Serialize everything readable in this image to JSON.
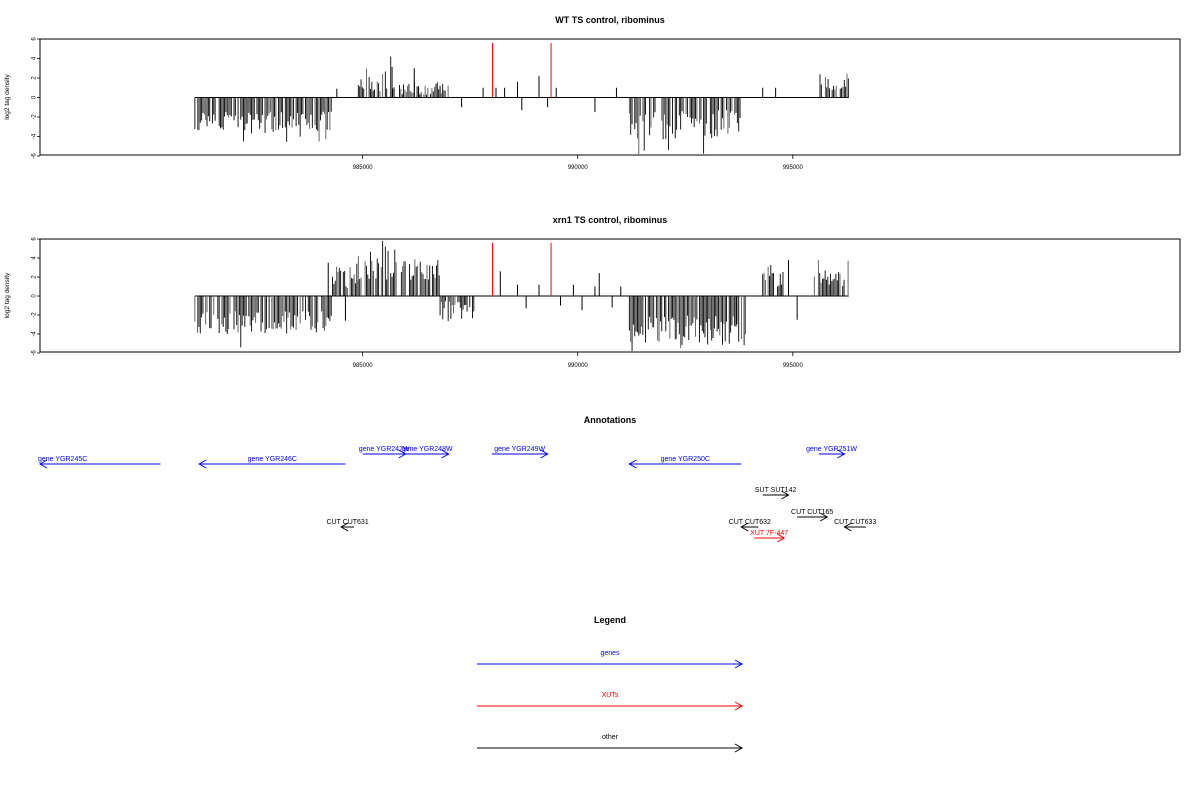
{
  "colors": {
    "gene": "#0000ff",
    "xut": "#ff0000",
    "other": "#000000",
    "ref": "#ff0000",
    "bar": "#000000"
  },
  "chart_data": [
    {
      "type": "bar",
      "title": "WT TS control, ribominus",
      "ylabel": "log2 tag density",
      "ylim": [
        -6,
        6
      ],
      "yticks": [
        "6",
        "4",
        "2",
        "0",
        "-2",
        "-4",
        "-6"
      ],
      "xlim": [
        977500,
        1004000
      ],
      "xticks": [
        985000,
        990000,
        995000
      ],
      "xtick_labels": [
        "985000",
        "990000",
        "995000"
      ],
      "data_range": [
        981100,
        996300
      ],
      "reference_lines": [
        988020,
        989380
      ],
      "segments": [
        {
          "from": 981100,
          "to": 984300,
          "dir": -1,
          "mean": 2.4,
          "amp": 1.0
        },
        {
          "from": 984300,
          "to": 984900,
          "dir": 0
        },
        {
          "from": 984900,
          "to": 985700,
          "dir": 1,
          "mean": 1.9,
          "amp": 1.6
        },
        {
          "from": 985700,
          "to": 987000,
          "dir": 1,
          "mean": 0.8,
          "amp": 0.6
        },
        {
          "from": 987000,
          "to": 990500,
          "dir": 0
        },
        {
          "from": 990500,
          "to": 991200,
          "dir": 0
        },
        {
          "from": 991200,
          "to": 993800,
          "dir": -1,
          "mean": 2.8,
          "amp": 1.5
        },
        {
          "from": 993800,
          "to": 995600,
          "dir": 0
        },
        {
          "from": 995600,
          "to": 996300,
          "dir": 1,
          "mean": 1.5,
          "amp": 1.0
        }
      ],
      "sparse_bars": [
        [
          984400,
          0.9
        ],
        [
          986200,
          3.0
        ],
        [
          986300,
          1.0
        ],
        [
          986800,
          1.2
        ],
        [
          987300,
          -1.0
        ],
        [
          987800,
          1.0
        ],
        [
          988100,
          1.0
        ],
        [
          988300,
          1.0
        ],
        [
          988600,
          1.6
        ],
        [
          988700,
          -1.3
        ],
        [
          989100,
          2.2
        ],
        [
          989300,
          -1.0
        ],
        [
          989500,
          1.0
        ],
        [
          990400,
          -1.5
        ],
        [
          990900,
          1.0
        ],
        [
          994300,
          1.0
        ],
        [
          994600,
          1.0
        ]
      ]
    },
    {
      "type": "bar",
      "title": "xrn1 TS control, ribominus",
      "ylabel": "log2 tag density",
      "ylim": [
        -6,
        6
      ],
      "yticks": [
        "6",
        "4",
        "2",
        "0",
        "-2",
        "-4",
        "-6"
      ],
      "xlim": [
        977500,
        1004000
      ],
      "xticks": [
        985000,
        990000,
        995000
      ],
      "xtick_labels": [
        "985000",
        "990000",
        "995000"
      ],
      "data_range": [
        981100,
        996300
      ],
      "reference_lines": [
        988020,
        989380
      ],
      "segments": [
        {
          "from": 981100,
          "to": 984300,
          "dir": -1,
          "mean": 2.8,
          "amp": 1.2
        },
        {
          "from": 984300,
          "to": 984900,
          "dir": 1,
          "mean": 2.0,
          "amp": 1.2
        },
        {
          "from": 984900,
          "to": 985800,
          "dir": 1,
          "mean": 3.4,
          "amp": 1.8
        },
        {
          "from": 985900,
          "to": 986800,
          "dir": 1,
          "mean": 2.8,
          "amp": 1.2
        },
        {
          "from": 986800,
          "to": 987600,
          "dir": -1,
          "mean": 1.5,
          "amp": 1.0
        },
        {
          "from": 987600,
          "to": 991200,
          "dir": 0
        },
        {
          "from": 991200,
          "to": 993900,
          "dir": -1,
          "mean": 3.6,
          "amp": 1.6
        },
        {
          "from": 994300,
          "to": 994800,
          "dir": 1,
          "mean": 2.0,
          "amp": 1.2
        },
        {
          "from": 995500,
          "to": 996300,
          "dir": 1,
          "mean": 1.8,
          "amp": 1.0
        }
      ],
      "sparse_bars": [
        [
          984200,
          3.5
        ],
        [
          984600,
          -2.6
        ],
        [
          988200,
          2.6
        ],
        [
          988600,
          1.2
        ],
        [
          988800,
          -1.3
        ],
        [
          989100,
          1.2
        ],
        [
          989600,
          -1.0
        ],
        [
          989900,
          1.2
        ],
        [
          990100,
          -1.5
        ],
        [
          990400,
          1.0
        ],
        [
          990500,
          2.4
        ],
        [
          990800,
          -1.2
        ],
        [
          991000,
          1.0
        ],
        [
          993700,
          -3.0
        ],
        [
          994900,
          3.8
        ],
        [
          995100,
          -2.5
        ]
      ]
    }
  ],
  "annotations": {
    "title": "Annotations",
    "xlim": [
      977500,
      1004000
    ],
    "features": [
      {
        "label": "gene YGR245C",
        "type": "gene",
        "from": 977500,
        "to": 980300,
        "dir": -1,
        "row": 1
      },
      {
        "label": "gene YGR246C",
        "type": "gene",
        "from": 981200,
        "to": 984600,
        "dir": -1,
        "row": 1
      },
      {
        "label": "gene YGR247W",
        "type": "gene",
        "from": 985000,
        "to": 986000,
        "dir": 1,
        "row": 0
      },
      {
        "label": "gene YGR248W",
        "type": "gene",
        "from": 986000,
        "to": 987000,
        "dir": 1,
        "row": 0
      },
      {
        "label": "gene YGR249W",
        "type": "gene",
        "from": 988000,
        "to": 989300,
        "dir": 1,
        "row": 0
      },
      {
        "label": "gene YGR250C",
        "type": "gene",
        "from": 991200,
        "to": 993800,
        "dir": -1,
        "row": 1
      },
      {
        "label": "gene YGR251W",
        "type": "gene",
        "from": 995600,
        "to": 996200,
        "dir": 1,
        "row": 0
      },
      {
        "label": "SUT SUT142",
        "type": "other",
        "from": 994300,
        "to": 994900,
        "dir": 1,
        "row": 2
      },
      {
        "label": "CUT CUT165",
        "type": "other",
        "from": 995100,
        "to": 995800,
        "dir": 1,
        "row": 3
      },
      {
        "label": "CUT CUT631",
        "type": "other",
        "from": 984500,
        "to": 984800,
        "dir": -1,
        "row": 4
      },
      {
        "label": "CUT CUT632",
        "type": "other",
        "from": 993800,
        "to": 994200,
        "dir": -1,
        "row": 4
      },
      {
        "label": "CUT CUT633",
        "type": "other",
        "from": 996200,
        "to": 996700,
        "dir": -1,
        "row": 4
      },
      {
        "label": "XUT 7F-447",
        "type": "xut",
        "from": 994100,
        "to": 994800,
        "dir": 1,
        "row": 5
      }
    ]
  },
  "legend": {
    "title": "Legend",
    "items": [
      {
        "label": "genes",
        "type": "gene"
      },
      {
        "label": "XUTs",
        "type": "xut"
      },
      {
        "label": "other",
        "type": "other"
      }
    ]
  }
}
